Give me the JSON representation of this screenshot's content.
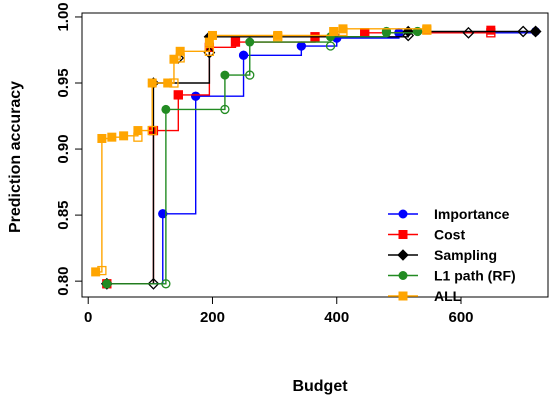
{
  "chart_data": {
    "type": "line",
    "title": "",
    "xlabel": "Budget",
    "ylabel": "Prediction accuracy",
    "xlim": [
      -10,
      740
    ],
    "ylim": [
      0.788,
      1.003
    ],
    "grid": false,
    "legend_position": "bottom-right",
    "x_ticks": [
      0,
      200,
      400,
      600
    ],
    "x_tick_labels": [
      "0",
      "200",
      "400",
      "600"
    ],
    "y_ticks": [
      0.8,
      0.85,
      0.9,
      0.95,
      1.0
    ],
    "y_tick_labels": [
      "0.80",
      "0.85",
      "0.90",
      "0.95",
      "1.00"
    ],
    "series": [
      {
        "name": "Importance",
        "color": "#0000FF",
        "marker": "circle",
        "filled": [
          [
            30,
            0.798
          ],
          [
            120,
            0.851
          ],
          [
            173,
            0.94
          ],
          [
            250,
            0.971
          ],
          [
            343,
            0.978
          ],
          [
            400,
            0.984
          ],
          [
            500,
            0.988
          ],
          [
            720,
            0.989
          ]
        ],
        "open": [
          [
            30,
            0.798
          ],
          [
            120,
            0.851
          ],
          [
            173,
            0.94
          ],
          [
            250,
            0.971
          ],
          [
            343,
            0.978
          ],
          [
            400,
            0.984
          ],
          [
            500,
            0.988
          ]
        ]
      },
      {
        "name": "Cost",
        "color": "#FF0000",
        "marker": "square",
        "filled": [
          [
            30,
            0.798
          ],
          [
            105,
            0.914
          ],
          [
            145,
            0.941
          ],
          [
            195,
            0.977
          ],
          [
            237,
            0.981
          ],
          [
            365,
            0.985
          ],
          [
            445,
            0.988
          ],
          [
            648,
            0.99
          ]
        ],
        "open": [
          [
            30,
            0.798
          ],
          [
            105,
            0.914
          ],
          [
            145,
            0.941
          ],
          [
            195,
            0.977
          ],
          [
            237,
            0.981
          ],
          [
            365,
            0.985
          ],
          [
            445,
            0.988
          ],
          [
            648,
            0.988
          ]
        ]
      },
      {
        "name": "Sampling",
        "color": "#000000",
        "marker": "diamond",
        "filled": [
          [
            30,
            0.798
          ],
          [
            105,
            0.95
          ],
          [
            195,
            0.985
          ],
          [
            515,
            0.989
          ],
          [
            720,
            0.989
          ]
        ],
        "open": [
          [
            30,
            0.798
          ],
          [
            105,
            0.798
          ],
          [
            145,
            0.969
          ],
          [
            195,
            0.973
          ],
          [
            515,
            0.986
          ],
          [
            612,
            0.988
          ],
          [
            700,
            0.989
          ],
          [
            720,
            0.989
          ]
        ]
      },
      {
        "name": "L1 path (RF)",
        "color": "#228B22",
        "marker": "circle",
        "filled": [
          [
            30,
            0.798
          ],
          [
            125,
            0.93
          ],
          [
            220,
            0.956
          ],
          [
            260,
            0.981
          ],
          [
            390,
            0.985
          ],
          [
            480,
            0.988
          ],
          [
            530,
            0.989
          ]
        ],
        "open": [
          [
            30,
            0.798
          ],
          [
            125,
            0.798
          ],
          [
            220,
            0.93
          ],
          [
            260,
            0.956
          ],
          [
            390,
            0.978
          ],
          [
            480,
            0.989
          ],
          [
            530,
            0.989
          ]
        ]
      },
      {
        "name": "ALL",
        "color": "#FFA500",
        "marker": "square",
        "filled": [
          [
            12,
            0.807
          ],
          [
            22,
            0.908
          ],
          [
            38,
            0.909
          ],
          [
            57,
            0.91
          ],
          [
            80,
            0.914
          ],
          [
            103,
            0.95
          ],
          [
            128,
            0.95
          ],
          [
            138,
            0.968
          ],
          [
            148,
            0.974
          ],
          [
            195,
            0.981
          ],
          [
            200,
            0.986
          ],
          [
            305,
            0.986
          ],
          [
            395,
            0.989
          ],
          [
            410,
            0.991
          ],
          [
            545,
            0.991
          ]
        ],
        "open": [
          [
            22,
            0.808
          ],
          [
            80,
            0.909
          ],
          [
            103,
            0.914
          ],
          [
            138,
            0.95
          ],
          [
            148,
            0.969
          ],
          [
            195,
            0.974
          ],
          [
            305,
            0.985
          ],
          [
            410,
            0.989
          ],
          [
            545,
            0.99
          ]
        ]
      }
    ]
  }
}
